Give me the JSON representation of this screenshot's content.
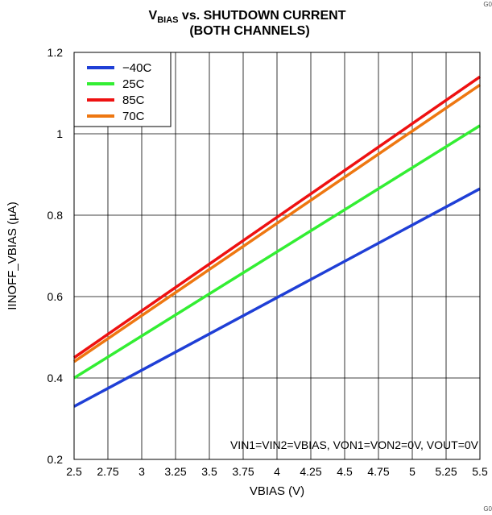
{
  "chart_data": {
    "type": "line",
    "title_main": "V",
    "title_sub": "BIAS",
    "title_rest": " vs. SHUTDOWN CURRENT",
    "title_line2": "(BOTH CHANNELS)",
    "xlabel": "VBIAS (V)",
    "ylabel": "IINOFF_VBIAS (µA)",
    "xlim": [
      2.5,
      5.5
    ],
    "ylim": [
      0.2,
      1.2
    ],
    "xticks": [
      2.5,
      2.75,
      3,
      3.25,
      3.5,
      3.75,
      4,
      4.25,
      4.5,
      4.75,
      5,
      5.25,
      5.5
    ],
    "yticks": [
      0.2,
      0.4,
      0.6,
      0.8,
      1,
      1.2
    ],
    "grid": true,
    "legend_position": "top-left",
    "annotation": "VIN1=VIN2=VBIAS, VON1=VON2=0V, VOUT=0V",
    "series": [
      {
        "name": "−40C",
        "color": "#1f3fd6",
        "x": [
          2.5,
          5.5
        ],
        "y": [
          0.33,
          0.865
        ]
      },
      {
        "name": "25C",
        "color": "#33ee33",
        "x": [
          2.5,
          5.5
        ],
        "y": [
          0.4,
          1.02
        ]
      },
      {
        "name": "85C",
        "color": "#ee1111",
        "x": [
          2.5,
          5.5
        ],
        "y": [
          0.45,
          1.14
        ]
      },
      {
        "name": "70C",
        "color": "#ee7711",
        "x": [
          2.5,
          5.5
        ],
        "y": [
          0.44,
          1.12
        ]
      }
    ]
  },
  "corner_tag_top": "G0",
  "corner_tag_bottom": "G0"
}
